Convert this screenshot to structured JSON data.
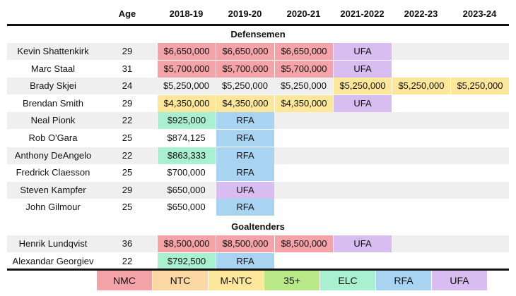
{
  "header": {
    "age": "Age",
    "seasons": [
      "2018-19",
      "2019-20",
      "2020-21",
      "2021-2022",
      "2022-23",
      "2023-24"
    ]
  },
  "sections": {
    "defensemen": "Defensemen",
    "goaltenders": "Goaltenders"
  },
  "colors": {
    "NMC": "#f4a3a8",
    "NTC": "#fbd7a4",
    "M-NTC": "#fde79a",
    "35+": "#b8e986",
    "ELC": "#a8f0cf",
    "RFA": "#a8d4f2",
    "UFA": "#d7bdf0"
  },
  "defensemen": [
    {
      "name": "Kevin Shattenkirk",
      "age": "29",
      "cells": [
        [
          "$6,650,000",
          "nmc"
        ],
        [
          "$6,650,000",
          "nmc"
        ],
        [
          "$6,650,000",
          "nmc"
        ],
        [
          "UFA",
          "ufa"
        ],
        [
          "",
          ""
        ],
        [
          "",
          ""
        ]
      ]
    },
    {
      "name": "Marc Staal",
      "age": "31",
      "cells": [
        [
          "$5,700,000",
          "nmc"
        ],
        [
          "$5,700,000",
          "nmc"
        ],
        [
          "$5,700,000",
          "nmc"
        ],
        [
          "UFA",
          "ufa"
        ],
        [
          "",
          ""
        ],
        [
          "",
          ""
        ]
      ]
    },
    {
      "name": "Brady Skjei",
      "age": "24",
      "cells": [
        [
          "$5,250,000",
          ""
        ],
        [
          "$5,250,000",
          ""
        ],
        [
          "$5,250,000",
          ""
        ],
        [
          "$5,250,000",
          "mntc"
        ],
        [
          "$5,250,000",
          "mntc"
        ],
        [
          "$5,250,000",
          "mntc"
        ]
      ]
    },
    {
      "name": "Brendan Smith",
      "age": "29",
      "cells": [
        [
          "$4,350,000",
          "mntc"
        ],
        [
          "$4,350,000",
          "mntc"
        ],
        [
          "$4,350,000",
          "mntc"
        ],
        [
          "UFA",
          "ufa"
        ],
        [
          "",
          ""
        ],
        [
          "",
          ""
        ]
      ]
    },
    {
      "name": "Neal Pionk",
      "age": "22",
      "cells": [
        [
          "$925,000",
          "elc"
        ],
        [
          "RFA",
          "rfa"
        ],
        [
          "",
          ""
        ],
        [
          "",
          ""
        ],
        [
          "",
          ""
        ],
        [
          "",
          ""
        ]
      ]
    },
    {
      "name": "Rob O'Gara",
      "age": "25",
      "cells": [
        [
          "$874,125",
          ""
        ],
        [
          "RFA",
          "rfa"
        ],
        [
          "",
          ""
        ],
        [
          "",
          ""
        ],
        [
          "",
          ""
        ],
        [
          "",
          ""
        ]
      ]
    },
    {
      "name": "Anthony DeAngelo",
      "age": "22",
      "cells": [
        [
          "$863,333",
          "elc"
        ],
        [
          "RFA",
          "rfa"
        ],
        [
          "",
          ""
        ],
        [
          "",
          ""
        ],
        [
          "",
          ""
        ],
        [
          "",
          ""
        ]
      ]
    },
    {
      "name": "Fredrick Claesson",
      "age": "25",
      "cells": [
        [
          "$700,000",
          ""
        ],
        [
          "RFA",
          "rfa"
        ],
        [
          "",
          ""
        ],
        [
          "",
          ""
        ],
        [
          "",
          ""
        ],
        [
          "",
          ""
        ]
      ]
    },
    {
      "name": "Steven Kampfer",
      "age": "29",
      "cells": [
        [
          "$650,000",
          ""
        ],
        [
          "UFA",
          "ufa"
        ],
        [
          "",
          ""
        ],
        [
          "",
          ""
        ],
        [
          "",
          ""
        ],
        [
          "",
          ""
        ]
      ]
    },
    {
      "name": "John Gilmour",
      "age": "25",
      "cells": [
        [
          "$650,000",
          ""
        ],
        [
          "RFA",
          "rfa"
        ],
        [
          "",
          ""
        ],
        [
          "",
          ""
        ],
        [
          "",
          ""
        ],
        [
          "",
          ""
        ]
      ]
    }
  ],
  "goaltenders": [
    {
      "name": "Henrik Lundqvist",
      "age": "36",
      "cells": [
        [
          "$8,500,000",
          "nmc"
        ],
        [
          "$8,500,000",
          "nmc"
        ],
        [
          "$8,500,000",
          "nmc"
        ],
        [
          "UFA",
          "ufa"
        ],
        [
          "",
          ""
        ],
        [
          "",
          ""
        ]
      ]
    },
    {
      "name": "Alexandar Georgiev",
      "age": "22",
      "cells": [
        [
          "$792,500",
          "elc"
        ],
        [
          "RFA",
          "rfa"
        ],
        [
          "",
          ""
        ],
        [
          "",
          ""
        ],
        [
          "",
          ""
        ],
        [
          "",
          ""
        ]
      ]
    }
  ],
  "legend": [
    {
      "label": "NMC",
      "cls": "nmc"
    },
    {
      "label": "NTC",
      "cls": "ntc"
    },
    {
      "label": "M-NTC",
      "cls": "mntc"
    },
    {
      "label": "35+",
      "cls": "35"
    },
    {
      "label": "ELC",
      "cls": "elc"
    },
    {
      "label": "RFA",
      "cls": "rfa"
    },
    {
      "label": "UFA",
      "cls": "ufa"
    }
  ]
}
